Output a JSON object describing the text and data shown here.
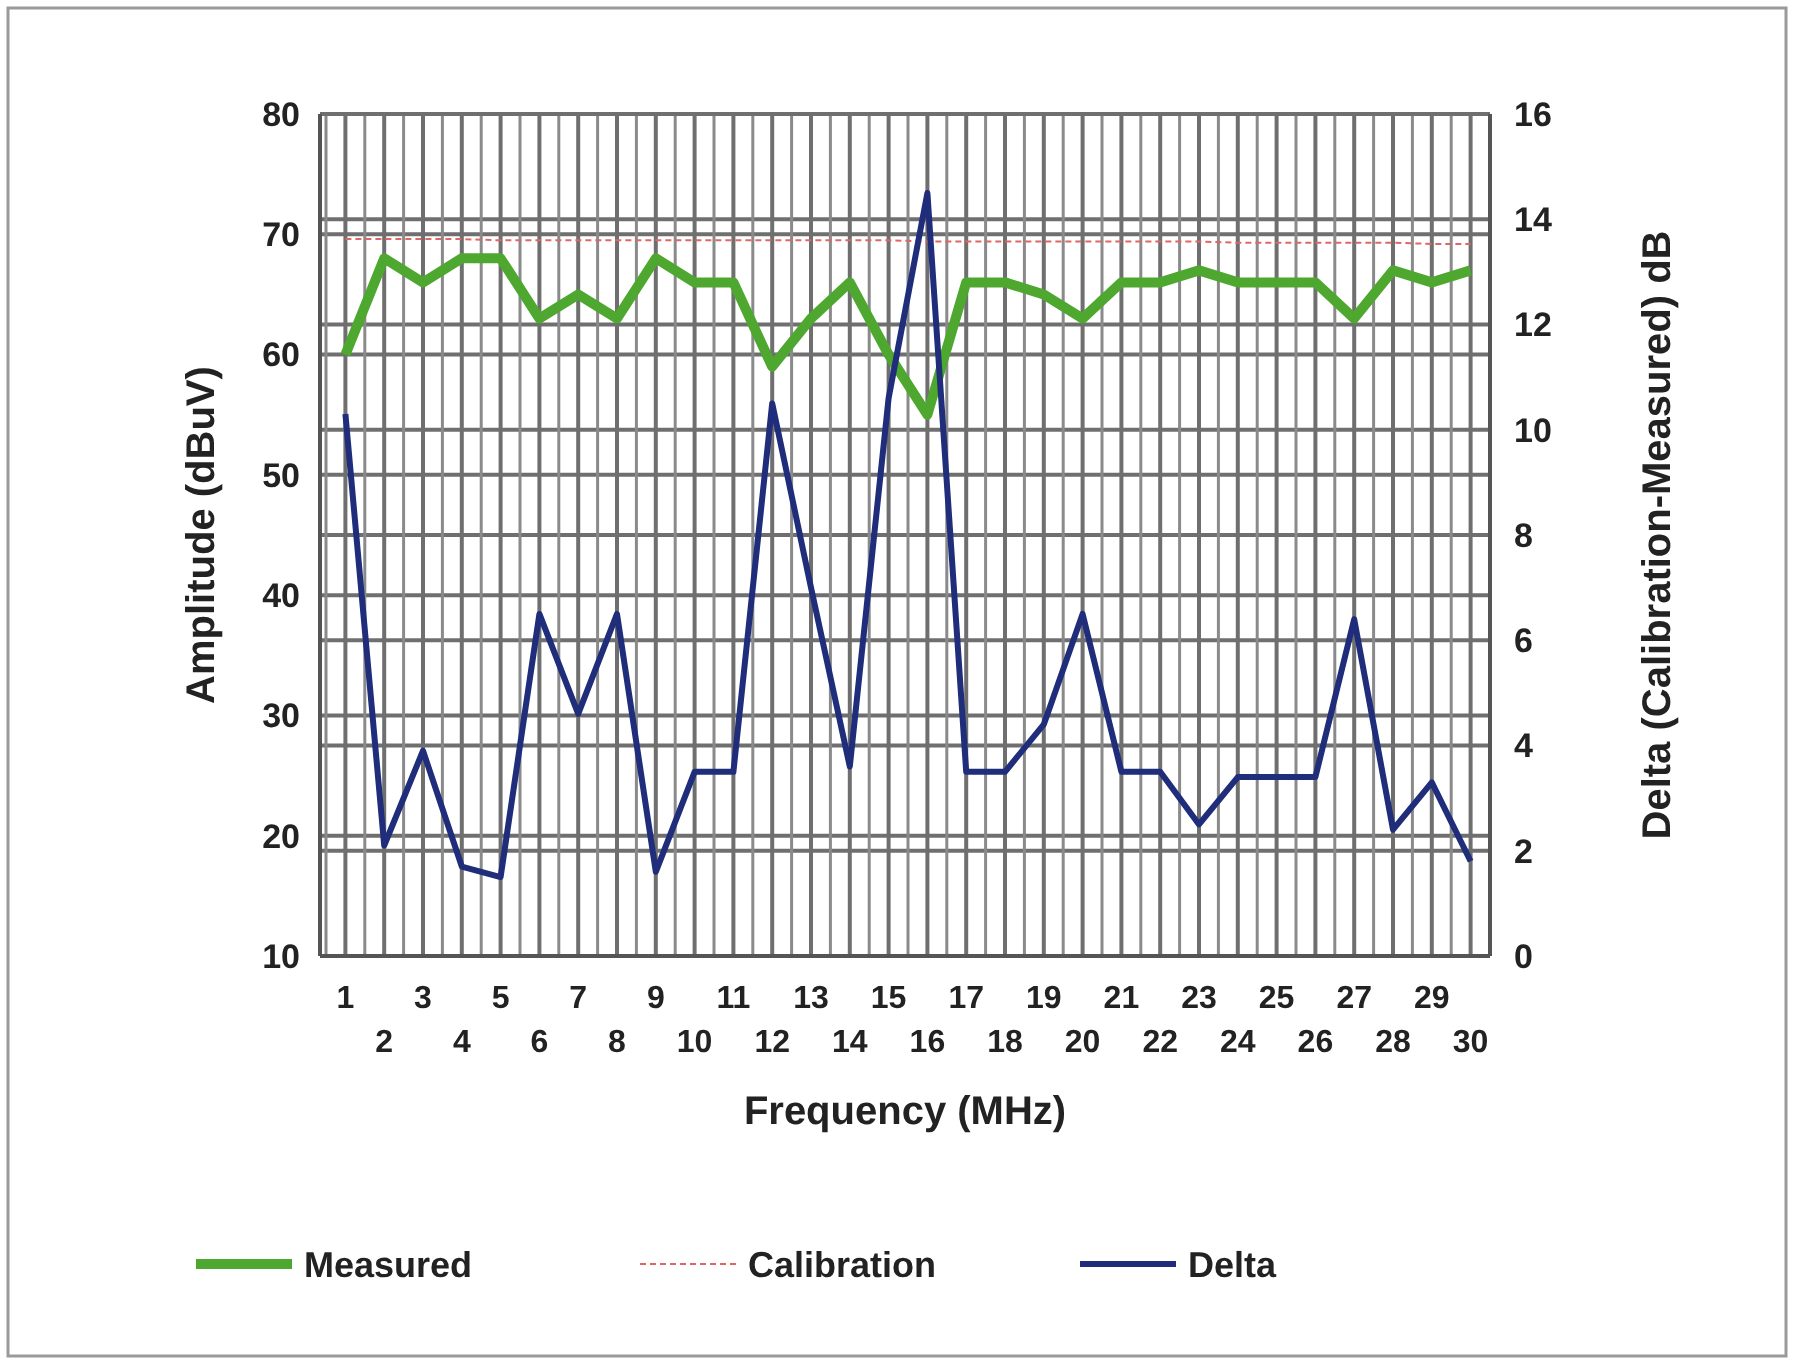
{
  "chart_data": {
    "type": "line",
    "categories": [
      "1",
      "2",
      "3",
      "4",
      "5",
      "6",
      "7",
      "8",
      "9",
      "10",
      "11",
      "12",
      "13",
      "14",
      "15",
      "16",
      "17",
      "18",
      "19",
      "20",
      "21",
      "22",
      "23",
      "24",
      "25",
      "26",
      "27",
      "28",
      "29",
      "30"
    ],
    "series": [
      {
        "name": "Measured",
        "color": "#4ea72e",
        "values": [
          60,
          68,
          66,
          68,
          68,
          63,
          65,
          63,
          68,
          66,
          66,
          59,
          63,
          66,
          60,
          55,
          66,
          66,
          65,
          63,
          66,
          66,
          67,
          66,
          66,
          66,
          63,
          67,
          66,
          67
        ]
      },
      {
        "name": "Calibration",
        "color": "#e06666",
        "line_style": "dashed",
        "values": [
          69.6,
          69.6,
          69.6,
          69.6,
          69.5,
          69.5,
          69.5,
          69.5,
          69.5,
          69.5,
          69.5,
          69.5,
          69.5,
          69.5,
          69.5,
          69.4,
          69.4,
          69.4,
          69.4,
          69.4,
          69.4,
          69.4,
          69.4,
          69.3,
          69.3,
          69.3,
          69.3,
          69.3,
          69.2,
          69.2
        ]
      },
      {
        "name": "Delta",
        "color": "#1f2d7a",
        "axis": "y2",
        "values": [
          10.3,
          2.1,
          3.9,
          1.7,
          1.5,
          6.5,
          4.6,
          6.5,
          1.6,
          3.5,
          3.5,
          10.5,
          7.0,
          3.6,
          10.6,
          14.5,
          3.5,
          3.5,
          4.4,
          6.5,
          3.5,
          3.5,
          2.5,
          3.4,
          3.4,
          3.4,
          6.4,
          2.4,
          3.3,
          1.8
        ]
      }
    ],
    "xlabel": "Frequency (MHz)",
    "ylabel": "Amplitude (dBuV)",
    "y2label": "Delta (Calibration-Measured) dB",
    "ylim": [
      10,
      80
    ],
    "yticks": [
      10,
      20,
      30,
      40,
      50,
      60,
      70,
      80
    ],
    "y2lim": [
      0,
      16
    ],
    "y2ticks": [
      0,
      2,
      4,
      6,
      8,
      10,
      12,
      14,
      16
    ],
    "grid": true,
    "legend": "bottom",
    "line_style": "solid",
    "marker": "none"
  }
}
